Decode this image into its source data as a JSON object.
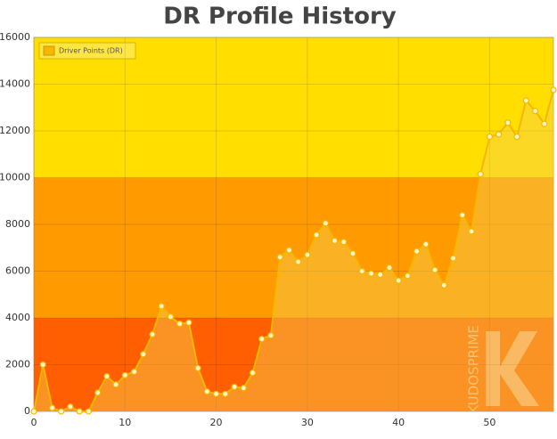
{
  "chart_data": {
    "type": "line",
    "title": "DR Profile History",
    "x": [
      0,
      1,
      2,
      3,
      4,
      5,
      6,
      7,
      8,
      9,
      10,
      11,
      12,
      13,
      14,
      15,
      16,
      17,
      18,
      19,
      20,
      21,
      22,
      23,
      24,
      25,
      26,
      27,
      28,
      29,
      30,
      31,
      32,
      33,
      34,
      35,
      36,
      37,
      38,
      39,
      40,
      41,
      42,
      43,
      44,
      45,
      46,
      47,
      48,
      49,
      50,
      51,
      52,
      53,
      54,
      55,
      56,
      57
    ],
    "series": [
      {
        "name": "Driver Points (DR)",
        "color": "#f5b700",
        "values": [
          0,
          2000,
          150,
          0,
          200,
          0,
          0,
          800,
          1500,
          1150,
          1550,
          1700,
          2450,
          3300,
          4500,
          4050,
          3750,
          3800,
          1850,
          850,
          750,
          750,
          1050,
          1000,
          1650,
          3100,
          3250,
          6600,
          6900,
          6400,
          6700,
          7550,
          8050,
          7300,
          7250,
          6750,
          6000,
          5900,
          5850,
          6150,
          5600,
          5800,
          6850,
          7150,
          6050,
          5400,
          6550,
          8400,
          7700,
          10150,
          11750,
          11850,
          12350,
          11750,
          13300,
          12850,
          12300,
          13750
        ]
      }
    ],
    "xlim": [
      0,
      57
    ],
    "xticks": [
      0,
      10,
      20,
      30,
      40,
      50
    ],
    "ylim": [
      0,
      16000
    ],
    "yticks": [
      0,
      2000,
      4000,
      6000,
      8000,
      10000,
      12000,
      14000,
      16000
    ],
    "bands": [
      {
        "from": 0,
        "to": 4000,
        "color": "#ff5f00"
      },
      {
        "from": 4000,
        "to": 10000,
        "color": "#ff9a00"
      },
      {
        "from": 10000,
        "to": 16000,
        "color": "#ffde00"
      }
    ],
    "grid": true,
    "legend": "top-left",
    "watermark": "KUDOSPRIME"
  }
}
